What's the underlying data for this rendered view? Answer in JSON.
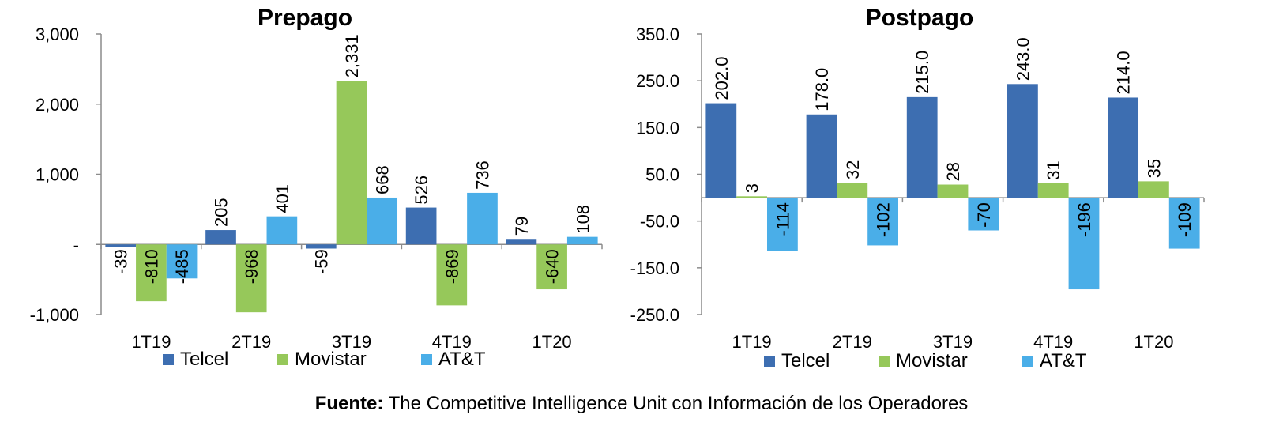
{
  "source": {
    "label": "Fuente:",
    "text": "The Competitive Intelligence Unit con Información de los Operadores"
  },
  "colors": {
    "Telcel": "#3d6eb1",
    "Movistar": "#96c85a",
    "AT&T": "#4aaee8"
  },
  "chart_data": [
    {
      "type": "bar",
      "title": "Prepago",
      "categories": [
        "1T19",
        "2T19",
        "3T19",
        "4T19",
        "1T20"
      ],
      "ylim": [
        -1000,
        3000
      ],
      "yticks": [
        -1000,
        0,
        1000,
        2000,
        3000
      ],
      "ytick_labels": [
        "-1,000",
        "-",
        "1,000",
        "2,000",
        "3,000"
      ],
      "grid": false,
      "legend_position": "bottom",
      "series": [
        {
          "name": "Telcel",
          "values": [
            -39,
            205,
            -59,
            526,
            79
          ],
          "labels": [
            "-39",
            "205",
            "-59",
            "526",
            "79"
          ]
        },
        {
          "name": "Movistar",
          "values": [
            -810,
            -968,
            2331,
            -869,
            -640
          ],
          "labels": [
            "-810",
            "-968",
            "2,331",
            "-869",
            "-640"
          ]
        },
        {
          "name": "AT&T",
          "values": [
            -485,
            401,
            668,
            736,
            108
          ],
          "labels": [
            "-485",
            "401",
            "668",
            "736",
            "108"
          ]
        }
      ]
    },
    {
      "type": "bar",
      "title": "Postpago",
      "categories": [
        "1T19",
        "2T19",
        "3T19",
        "4T19",
        "1T20"
      ],
      "ylim": [
        -250,
        350
      ],
      "yticks": [
        -250,
        -150,
        -50,
        50,
        150,
        250,
        350
      ],
      "ytick_labels": [
        "-250.0",
        "-150.0",
        "-50.0",
        "50.0",
        "150.0",
        "250.0",
        "350.0"
      ],
      "grid": false,
      "legend_position": "bottom",
      "series": [
        {
          "name": "Telcel",
          "values": [
            202,
            178,
            215,
            243,
            214
          ],
          "labels": [
            "202.0",
            "178.0",
            "215.0",
            "243.0",
            "214.0"
          ]
        },
        {
          "name": "Movistar",
          "values": [
            3,
            32,
            28,
            31,
            35
          ],
          "labels": [
            "3",
            "32",
            "28",
            "31",
            "35"
          ]
        },
        {
          "name": "AT&T",
          "values": [
            -114,
            -102,
            -70,
            -196,
            -109
          ],
          "labels": [
            "-114",
            "-102",
            "-70",
            "-196",
            "-109"
          ]
        }
      ]
    }
  ]
}
